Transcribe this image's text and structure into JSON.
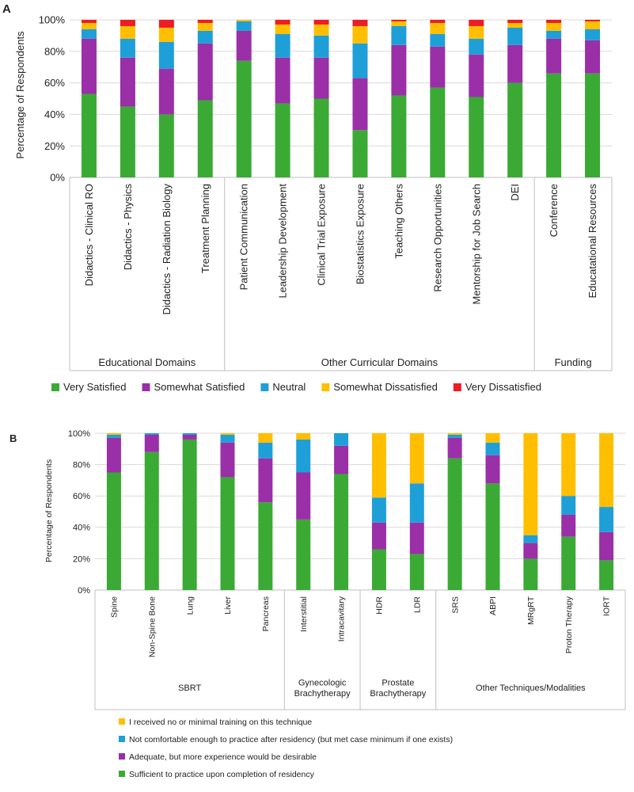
{
  "chart_data": [
    {
      "panel": "A",
      "type": "bar",
      "stacked": true,
      "ylabel": "Percentage of Respondents",
      "ylim": [
        0,
        100
      ],
      "yticks": [
        "0%",
        "20%",
        "40%",
        "60%",
        "80%",
        "100%"
      ],
      "categories": [
        "Didactics - Clinical RO",
        "Didactics - Physics",
        "Didactics - Radiation Biology",
        "Treatment Planning",
        "Patient Communication",
        "Leadership Development",
        "Clinical Trial Exposure",
        "Biostatistics Exposure",
        "Teaching Others",
        "Research Opportunities",
        "Mentorship for Job Search",
        "DEI",
        "Conference",
        "Educatational Resources"
      ],
      "groups": [
        {
          "label": "Educational Domains",
          "count": 4
        },
        {
          "label": "Other Curricular Domains",
          "count": 8
        },
        {
          "label": "Funding",
          "count": 2
        }
      ],
      "series": [
        {
          "name": "Very Satisfied",
          "color": "#3aaa35",
          "values": [
            53,
            45,
            40,
            49,
            74,
            47,
            50,
            30,
            52,
            57,
            51,
            60,
            66,
            66
          ]
        },
        {
          "name": "Somewhat Satisfied",
          "color": "#9b2fa8",
          "values": [
            35,
            31,
            29,
            36,
            19,
            29,
            26,
            33,
            32,
            26,
            27,
            24,
            22,
            21
          ]
        },
        {
          "name": "Neutral",
          "color": "#1f9fd8",
          "values": [
            6,
            12,
            17,
            8,
            6,
            15,
            14,
            22,
            12,
            8,
            10,
            11,
            5,
            7
          ]
        },
        {
          "name": "Somewhat Dissatisfied",
          "color": "#ffbf00",
          "values": [
            4,
            8,
            9,
            5,
            1,
            6,
            7,
            11,
            3,
            7,
            8,
            3,
            5,
            5
          ]
        },
        {
          "name": "Very Dissatisfied",
          "color": "#ee1c25",
          "values": [
            2,
            4,
            5,
            2,
            0,
            3,
            3,
            4,
            1,
            2,
            4,
            2,
            2,
            1
          ]
        }
      ]
    },
    {
      "panel": "B",
      "type": "bar",
      "stacked": true,
      "ylabel": "Percentage of Respondents",
      "ylim": [
        0,
        100
      ],
      "yticks": [
        "0%",
        "20%",
        "40%",
        "60%",
        "80%",
        "100%"
      ],
      "categories": [
        "Spine",
        "Non-Spine Bone",
        "Lung",
        "Liver",
        "Pancreas",
        "Interstitial",
        "Intracavitary",
        "HDR",
        "LDR",
        "SRS",
        "ABPI",
        "MRgRT",
        "Proton Therapy",
        "IORT"
      ],
      "groups": [
        {
          "label": "SBRT",
          "count": 5
        },
        {
          "label": "Gynecologic Brachytherapy",
          "lines": [
            "Gynecologic",
            "Brachytherapy"
          ],
          "count": 2
        },
        {
          "label": "Prostate Brachytherapy",
          "lines": [
            "Prostate",
            "Brachytherapy"
          ],
          "count": 2
        },
        {
          "label": "Other Techniques/Modalities",
          "count": 5
        }
      ],
      "series": [
        {
          "name": "Sufficient to practice upon completion of residency",
          "color": "#3aaa35",
          "values": [
            75,
            88,
            96,
            72,
            56,
            45,
            74,
            26,
            23,
            84,
            68,
            20,
            34,
            19
          ]
        },
        {
          "name": "Adequate, but more experience would be desirable",
          "color": "#9b2fa8",
          "values": [
            22,
            11,
            3,
            22,
            28,
            30,
            18,
            17,
            20,
            13,
            18,
            10,
            14,
            18
          ]
        },
        {
          "name": "Not comfortable enough to practice after residency (but met case minimum if one exists)",
          "color": "#1f9fd8",
          "values": [
            2,
            1,
            1,
            5,
            10,
            21,
            8,
            16,
            25,
            2,
            8,
            5,
            12,
            16
          ]
        },
        {
          "name": "I received no or minimal training on this technique",
          "color": "#ffbf00",
          "values": [
            1,
            0,
            0,
            1,
            6,
            4,
            0,
            41,
            32,
            1,
            6,
            65,
            40,
            47
          ]
        }
      ],
      "legend_order": [
        3,
        2,
        1,
        0
      ]
    }
  ],
  "labels": {
    "panelA": "A",
    "panelB": "B"
  }
}
